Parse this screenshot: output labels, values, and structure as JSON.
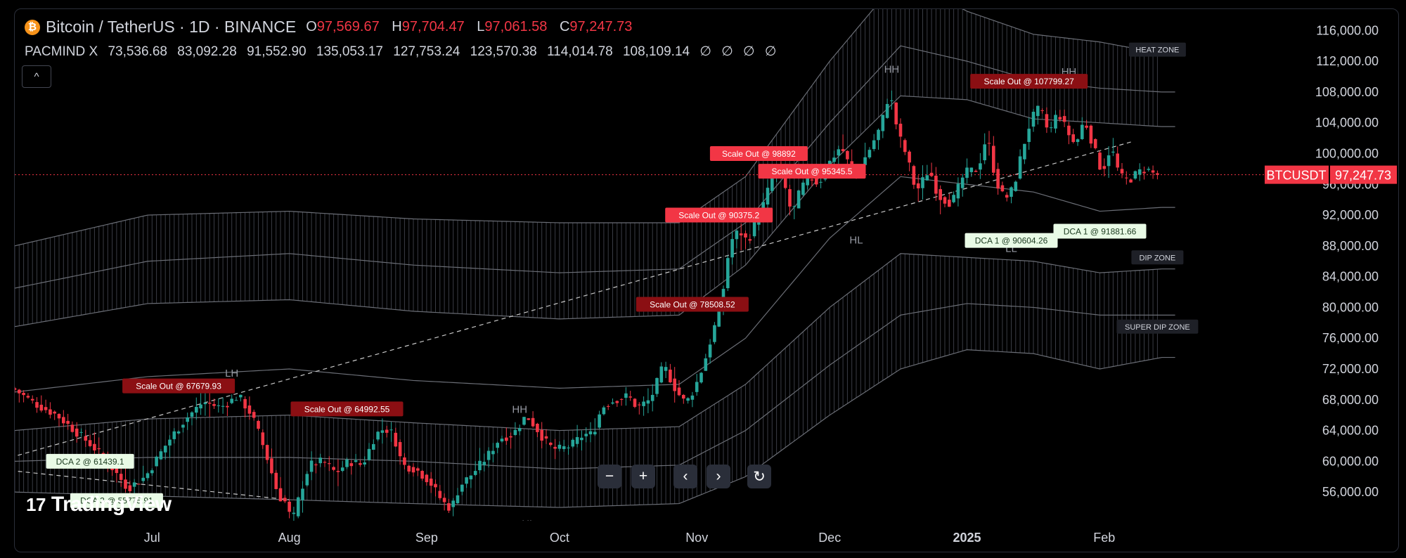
{
  "header": {
    "symbol": "Bitcoin / TetherUS · 1D · BINANCE",
    "open_key": "O",
    "open": "97,569.67",
    "high_key": "H",
    "high": "97,704.47",
    "low_key": "L",
    "low": "97,061.58",
    "close_key": "C",
    "close": "97,247.73"
  },
  "indicator": {
    "name": "PACMIND X",
    "values": [
      "73,536.68",
      "83,092.28",
      "91,552.90",
      "135,053.17",
      "127,753.24",
      "123,570.38",
      "114,014.78",
      "108,109.14",
      "∅",
      "∅",
      "∅",
      "∅"
    ]
  },
  "toolbar": {
    "zoom_out": "−",
    "zoom_in": "+",
    "scroll_left": "‹",
    "scroll_right": "›",
    "reset": "↻"
  },
  "collapse_icon": "^",
  "branding": {
    "logo": "TradingView",
    "mark": "17"
  },
  "colors": {
    "up": "#26a69a",
    "down": "#f23645",
    "dca": "#e9fbe6",
    "scale_out": "#8b0f13"
  },
  "chart_data": {
    "type": "candlestick",
    "symbol_tag": "BTCUSDT",
    "last_price": "97,247.73",
    "y_ticks": [
      56000,
      60000,
      64000,
      68000,
      72000,
      76000,
      80000,
      84000,
      88000,
      92000,
      96000,
      100000,
      104000,
      108000,
      112000,
      116000
    ],
    "y_tick_labels": [
      "56,000.00",
      "60,000.00",
      "64,000.00",
      "68,000.00",
      "72,000.00",
      "76,000.00",
      "80,000.00",
      "84,000.00",
      "88,000.00",
      "92,000.00",
      "96,000.00",
      "100,000.00",
      "104,000.00",
      "108,000.00",
      "112,000.00",
      "116,000.00"
    ],
    "ylim": [
      53000,
      119500
    ],
    "x_labels": [
      {
        "day": 31,
        "label": "Jul"
      },
      {
        "day": 62,
        "label": "Aug"
      },
      {
        "day": 93,
        "label": "Sep"
      },
      {
        "day": 123,
        "label": "Oct"
      },
      {
        "day": 154,
        "label": "Nov"
      },
      {
        "day": 184,
        "label": "Dec"
      },
      {
        "day": 215,
        "label": "2025"
      },
      {
        "day": 246,
        "label": "Feb"
      }
    ],
    "price_path": [
      [
        0,
        69500
      ],
      [
        5,
        67500
      ],
      [
        10,
        66000
      ],
      [
        15,
        63500
      ],
      [
        18,
        62000
      ],
      [
        22,
        59500
      ],
      [
        26,
        56500
      ],
      [
        30,
        58000
      ],
      [
        35,
        62500
      ],
      [
        39,
        65500
      ],
      [
        43,
        67700
      ],
      [
        47,
        67000
      ],
      [
        51,
        68500
      ],
      [
        54,
        66000
      ],
      [
        56,
        63000
      ],
      [
        58,
        59500
      ],
      [
        60,
        55500
      ],
      [
        62,
        54500
      ],
      [
        63,
        51800
      ],
      [
        65,
        56000
      ],
      [
        67,
        59500
      ],
      [
        70,
        60000
      ],
      [
        73,
        58500
      ],
      [
        76,
        60000
      ],
      [
        79,
        59500
      ],
      [
        82,
        63500
      ],
      [
        84,
        64300
      ],
      [
        86,
        63500
      ],
      [
        88,
        59500
      ],
      [
        91,
        59000
      ],
      [
        94,
        57500
      ],
      [
        97,
        54800
      ],
      [
        99,
        53800
      ],
      [
        101,
        56800
      ],
      [
        104,
        58500
      ],
      [
        107,
        60500
      ],
      [
        110,
        63000
      ],
      [
        113,
        63500
      ],
      [
        116,
        66000
      ],
      [
        118,
        64500
      ],
      [
        121,
        62000
      ],
      [
        123,
        61500
      ],
      [
        126,
        62000
      ],
      [
        129,
        63500
      ],
      [
        131,
        63500
      ],
      [
        133,
        67000
      ],
      [
        136,
        68000
      ],
      [
        139,
        68500
      ],
      [
        141,
        67000
      ],
      [
        144,
        68000
      ],
      [
        147,
        72500
      ],
      [
        150,
        69000
      ],
      [
        152,
        67500
      ],
      [
        154,
        69500
      ],
      [
        156,
        72500
      ],
      [
        158,
        76500
      ],
      [
        160,
        80500
      ],
      [
        162,
        88500
      ],
      [
        164,
        90000
      ],
      [
        166,
        88500
      ],
      [
        168,
        91500
      ],
      [
        170,
        94000
      ],
      [
        172,
        98500
      ],
      [
        174,
        96500
      ],
      [
        176,
        92000
      ],
      [
        178,
        95500
      ],
      [
        180,
        97000
      ],
      [
        182,
        96000
      ],
      [
        184,
        98500
      ],
      [
        187,
        101000
      ],
      [
        190,
        97000
      ],
      [
        193,
        100000
      ],
      [
        196,
        103500
      ],
      [
        198,
        108000
      ],
      [
        200,
        102500
      ],
      [
        202,
        99500
      ],
      [
        204,
        95000
      ],
      [
        207,
        98000
      ],
      [
        209,
        94500
      ],
      [
        212,
        93500
      ],
      [
        215,
        97500
      ],
      [
        218,
        98000
      ],
      [
        220,
        102500
      ],
      [
        222,
        96500
      ],
      [
        224,
        94000
      ],
      [
        226,
        95500
      ],
      [
        228,
        100500
      ],
      [
        230,
        104500
      ],
      [
        232,
        106000
      ],
      [
        234,
        102500
      ],
      [
        236,
        105500
      ],
      [
        238,
        103000
      ],
      [
        240,
        101000
      ],
      [
        242,
        104500
      ],
      [
        244,
        101000
      ],
      [
        246,
        97500
      ],
      [
        248,
        101000
      ],
      [
        250,
        97000
      ],
      [
        252,
        96500
      ],
      [
        254,
        97500
      ],
      [
        256,
        98000
      ],
      [
        258,
        97247
      ]
    ],
    "bands": {
      "upper2": [
        [
          0,
          88000
        ],
        [
          30,
          92000
        ],
        [
          62,
          92500
        ],
        [
          90,
          91500
        ],
        [
          123,
          91000
        ],
        [
          150,
          91000
        ],
        [
          165,
          97000
        ],
        [
          184,
          112000
        ],
        [
          200,
          123000
        ],
        [
          215,
          118500
        ],
        [
          230,
          115500
        ],
        [
          245,
          114500
        ],
        [
          259,
          113000
        ]
      ],
      "upper1": [
        [
          0,
          82500
        ],
        [
          30,
          86000
        ],
        [
          62,
          87000
        ],
        [
          90,
          85500
        ],
        [
          123,
          84500
        ],
        [
          150,
          85000
        ],
        [
          165,
          91000
        ],
        [
          184,
          104000
        ],
        [
          200,
          114000
        ],
        [
          215,
          112000
        ],
        [
          230,
          109500
        ],
        [
          245,
          108500
        ],
        [
          259,
          108000
        ]
      ],
      "upper0": [
        [
          0,
          77500
        ],
        [
          30,
          80500
        ],
        [
          62,
          81000
        ],
        [
          90,
          79500
        ],
        [
          123,
          78500
        ],
        [
          150,
          79000
        ],
        [
          165,
          85500
        ],
        [
          184,
          98500
        ],
        [
          200,
          107500
        ],
        [
          215,
          107000
        ],
        [
          230,
          104500
        ],
        [
          245,
          104000
        ],
        [
          259,
          103500
        ]
      ],
      "mid": [
        [
          0,
          69000
        ],
        [
          30,
          71000
        ],
        [
          62,
          72000
        ],
        [
          90,
          70500
        ],
        [
          123,
          69500
        ],
        [
          150,
          70000
        ],
        [
          165,
          76000
        ],
        [
          184,
          89000
        ],
        [
          200,
          97000
        ],
        [
          215,
          96000
        ],
        [
          230,
          95000
        ],
        [
          245,
          92500
        ],
        [
          259,
          93000
        ]
      ],
      "lower0": [
        [
          0,
          64000
        ],
        [
          30,
          65500
        ],
        [
          62,
          66000
        ],
        [
          90,
          65000
        ],
        [
          123,
          64000
        ],
        [
          150,
          64500
        ],
        [
          165,
          70000
        ],
        [
          184,
          80000
        ],
        [
          200,
          87000
        ],
        [
          215,
          86500
        ],
        [
          230,
          86000
        ],
        [
          245,
          84500
        ],
        [
          259,
          85000
        ]
      ],
      "lower1": [
        [
          0,
          60000
        ],
        [
          30,
          60500
        ],
        [
          62,
          60500
        ],
        [
          90,
          60000
        ],
        [
          123,
          59000
        ],
        [
          150,
          59500
        ],
        [
          165,
          64000
        ],
        [
          184,
          72500
        ],
        [
          200,
          79000
        ],
        [
          215,
          80500
        ],
        [
          230,
          80000
        ],
        [
          245,
          79000
        ],
        [
          259,
          79000
        ]
      ],
      "lower2": [
        [
          0,
          56000
        ],
        [
          30,
          55500
        ],
        [
          62,
          55000
        ],
        [
          90,
          54500
        ],
        [
          123,
          54000
        ],
        [
          150,
          54500
        ],
        [
          165,
          58000
        ],
        [
          184,
          66000
        ],
        [
          200,
          72000
        ],
        [
          215,
          74500
        ],
        [
          230,
          74000
        ],
        [
          245,
          72000
        ],
        [
          259,
          73500
        ]
      ]
    },
    "trendline": [
      [
        -1,
        60500
      ],
      [
        252,
        101500
      ]
    ],
    "trendline_low": [
      [
        -1,
        58800
      ],
      [
        62,
        55000
      ]
    ],
    "zone_labels": [
      {
        "text": "HEAT ZONE",
        "day": 258,
        "price": 113500
      },
      {
        "text": "DIP ZONE",
        "day": 258,
        "price": 86500
      },
      {
        "text": "SUPER DIP ZONE",
        "day": 258,
        "price": 77500
      }
    ],
    "structure_labels": [
      {
        "text": "LH",
        "day": 49,
        "price": 71000
      },
      {
        "text": "HH",
        "day": 114,
        "price": 66300
      },
      {
        "text": "HL",
        "day": 116,
        "price": 51400
      },
      {
        "text": "HH",
        "day": 198,
        "price": 110500
      },
      {
        "text": "HL",
        "day": 190,
        "price": 88300
      },
      {
        "text": "HH",
        "day": 238,
        "price": 110200
      },
      {
        "text": "LL",
        "day": 225,
        "price": 87200
      }
    ],
    "scale_out": [
      {
        "text": "Scale Out @ 67679.93",
        "day": 37,
        "price": 69800,
        "highlight": false
      },
      {
        "text": "Scale Out @ 64992.55",
        "day": 75,
        "price": 66800,
        "highlight": false
      },
      {
        "text": "Scale Out @ 78508.52",
        "day": 153,
        "price": 80400,
        "highlight": false
      },
      {
        "text": "Scale Out @ 90375.2",
        "day": 159,
        "price": 92000,
        "highlight": true
      },
      {
        "text": "Scale Out @ 98892",
        "day": 168,
        "price": 100000,
        "highlight": true
      },
      {
        "text": "Scale Out @ 95345.5",
        "day": 180,
        "price": 97700,
        "highlight": true
      },
      {
        "text": "Scale Out @ 107799.27",
        "day": 229,
        "price": 109400,
        "highlight": false
      }
    ],
    "dca": [
      {
        "text": "DCA 2 @ 61439.1",
        "day": 17,
        "price": 60000
      },
      {
        "text": "DCA 3 @ 55775.91",
        "day": 23,
        "price": 54900
      },
      {
        "text": "DCA 1 @ 90604.26",
        "day": 225,
        "price": 88700
      },
      {
        "text": "DCA 1 @ 91881.66",
        "day": 245,
        "price": 89900
      }
    ]
  }
}
